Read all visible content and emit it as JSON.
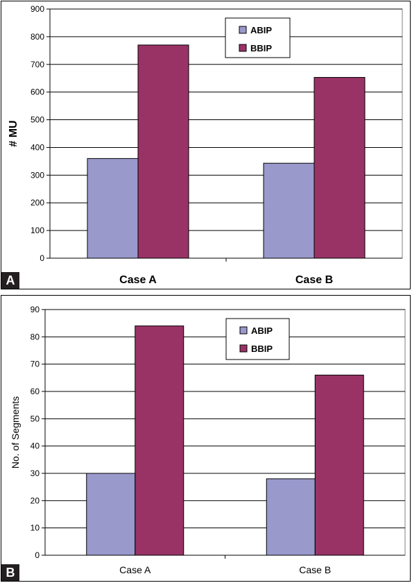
{
  "chart_data": [
    {
      "type": "bar",
      "panel_label": "A",
      "categories": [
        "Case A",
        "Case B"
      ],
      "series": [
        {
          "name": "ABIP",
          "values": [
            360,
            343
          ]
        },
        {
          "name": "BBIP",
          "values": [
            770,
            653
          ]
        }
      ],
      "ylabel": "# MU",
      "ylim": [
        0,
        900
      ],
      "yticks": [
        0,
        100,
        200,
        300,
        400,
        500,
        600,
        700,
        800,
        900
      ],
      "grid": true,
      "legend_position": "top-center",
      "colors": {
        "ABIP": "#9999cc",
        "BBIP": "#993366"
      }
    },
    {
      "type": "bar",
      "panel_label": "B",
      "categories": [
        "Case A",
        "Case B"
      ],
      "series": [
        {
          "name": "ABIP",
          "values": [
            30,
            28
          ]
        },
        {
          "name": "BBIP",
          "values": [
            84,
            66
          ]
        }
      ],
      "ylabel": "No. of Segments",
      "ylim": [
        0,
        90
      ],
      "yticks": [
        0,
        10,
        20,
        30,
        40,
        50,
        60,
        70,
        80,
        90
      ],
      "grid": true,
      "legend_position": "top-center",
      "colors": {
        "ABIP": "#9999cc",
        "BBIP": "#993366"
      }
    }
  ]
}
